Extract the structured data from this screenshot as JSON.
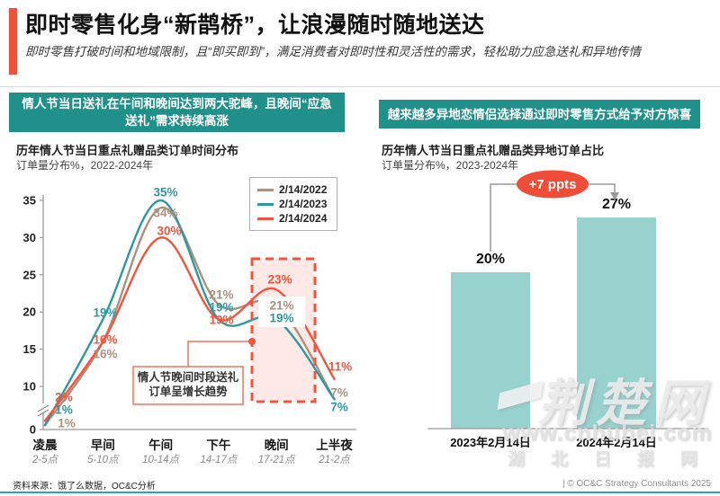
{
  "header": {
    "title": "即时零售化身“新鹊桥”，让浪漫随时随地送达",
    "subtitle": "即时零售打破时间和地域限制，且“即买即到”，满足消费者对即时性和灵活性的需求，轻松助力应急送礼和异地传情"
  },
  "left_panel": {
    "banner": "情人节当日送礼在午间和晚间达到两大驼峰，且晚间“应急送礼”需求持续高涨",
    "chart_title": "历年情人节当日重点礼赠品类订单时间分布",
    "chart_subtitle": "订单量分布%，2022-2024年"
  },
  "right_panel": {
    "banner": "越来越多异地恋情侣选择通过即时零售方式给予对方惊喜",
    "chart_title": "历年情人节当日重点礼赠品类异地订单占比",
    "chart_subtitle": "订单量分布%，2023-2024年"
  },
  "footer": {
    "source": "资料来源：饿了么数据，OC&C分析",
    "copyright": "| © OC&C Strategy Consultants 2025"
  },
  "watermark": {
    "logo": "荆楚网",
    "url": "www.cnhubei.com",
    "site": "湖北日报网"
  },
  "colors": {
    "accent_red": "#F0503A",
    "banner_teal": "#20908A",
    "bar_teal": "#97D2CF",
    "series_2022": "#AC9180",
    "series_2023": "#2E99A0",
    "series_2024": "#F4543C"
  },
  "chart_data": [
    {
      "type": "line",
      "title": "历年情人节当日重点礼赠品类订单时间分布",
      "ylabel": "订单量分布%",
      "categories": [
        "凌晨",
        "早间",
        "午间",
        "下午",
        "晚间",
        "上半夜"
      ],
      "category_sublabels": [
        "2-5点",
        "5-10点",
        "10-14点",
        "14-17点",
        "17-21点",
        "21-2点"
      ],
      "yticks": [
        0,
        10,
        15,
        20,
        25,
        30,
        35
      ],
      "axis_break_between": [
        0,
        10
      ],
      "ylim": [
        0,
        35
      ],
      "grid": false,
      "legend_position": "top-right",
      "series": [
        {
          "name": "2/14/2022",
          "color": "#AC9180",
          "values": [
            1,
            16,
            34,
            21,
            21,
            7
          ]
        },
        {
          "name": "2/14/2023",
          "color": "#2E99A0",
          "values": [
            1,
            19,
            35,
            19,
            19,
            7
          ]
        },
        {
          "name": "2/14/2024",
          "color": "#F4543C",
          "values": [
            2,
            16,
            30,
            19,
            23,
            11
          ]
        }
      ],
      "highlight": {
        "category": "晚间",
        "style": "red-dashed-box"
      },
      "annotation": [
        "情人节晚间时段送礼",
        "订单呈增长趋势"
      ]
    },
    {
      "type": "bar",
      "title": "历年情人节当日重点礼赠品类异地订单占比",
      "ylabel": "订单量分布%",
      "categories": [
        "2023年2月14日",
        "2024年2月14日"
      ],
      "values": [
        20,
        27
      ],
      "value_labels": [
        "20%",
        "27%"
      ],
      "delta_annotation": "+7 ppts",
      "bar_color": "#97D2CF",
      "ylim": [
        0,
        30
      ],
      "grid": false
    }
  ]
}
